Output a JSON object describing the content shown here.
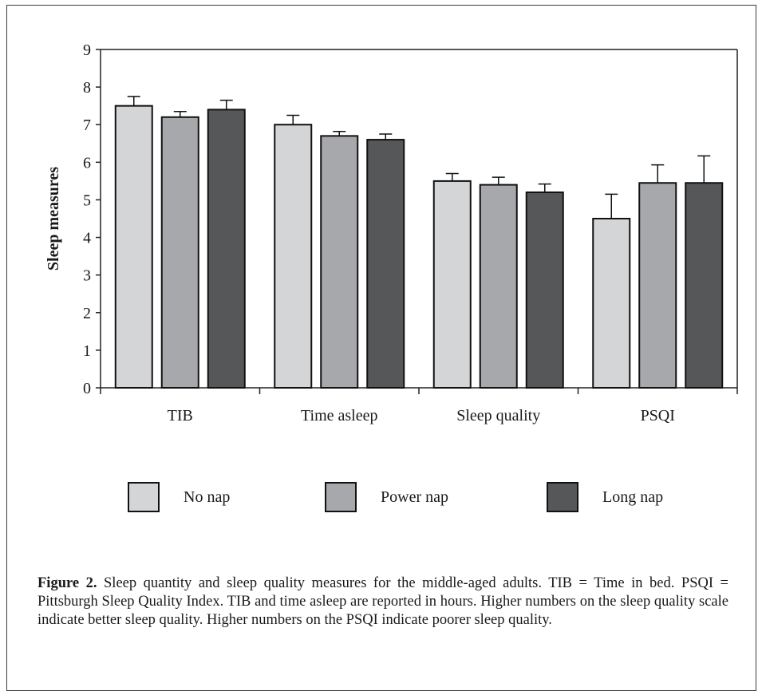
{
  "chart_data": {
    "type": "bar",
    "ylabel": "Sleep measures",
    "xlabel": "",
    "ylim": [
      0,
      9
    ],
    "yticks": [
      0,
      1,
      2,
      3,
      4,
      5,
      6,
      7,
      8,
      9
    ],
    "grid": false,
    "legend_position": "bottom",
    "categories": [
      "TIB",
      "Time asleep",
      "Sleep quality",
      "PSQI"
    ],
    "series": [
      {
        "name": "No nap",
        "color": "#d4d5d7",
        "values": [
          7.5,
          7.0,
          5.5,
          4.5
        ],
        "errors": [
          0.25,
          0.25,
          0.2,
          0.65
        ]
      },
      {
        "name": "Power nap",
        "color": "#a7a8ab",
        "values": [
          7.2,
          6.7,
          5.4,
          5.45
        ],
        "errors": [
          0.15,
          0.12,
          0.2,
          0.48
        ]
      },
      {
        "name": "Long nap",
        "color": "#565759",
        "values": [
          7.4,
          6.6,
          5.2,
          5.45
        ],
        "errors": [
          0.25,
          0.15,
          0.22,
          0.72
        ]
      }
    ]
  },
  "caption": {
    "label": "Figure 2.",
    "text": " Sleep quantity and sleep quality measures for the middle-aged adults. TIB = Time in bed. PSQI = Pittsburgh Sleep Quality Index. TIB and time asleep are reported in hours. Higher numbers on the sleep quality scale indicate better sleep quality. Higher numbers on the PSQI indicate poorer sleep quality."
  }
}
